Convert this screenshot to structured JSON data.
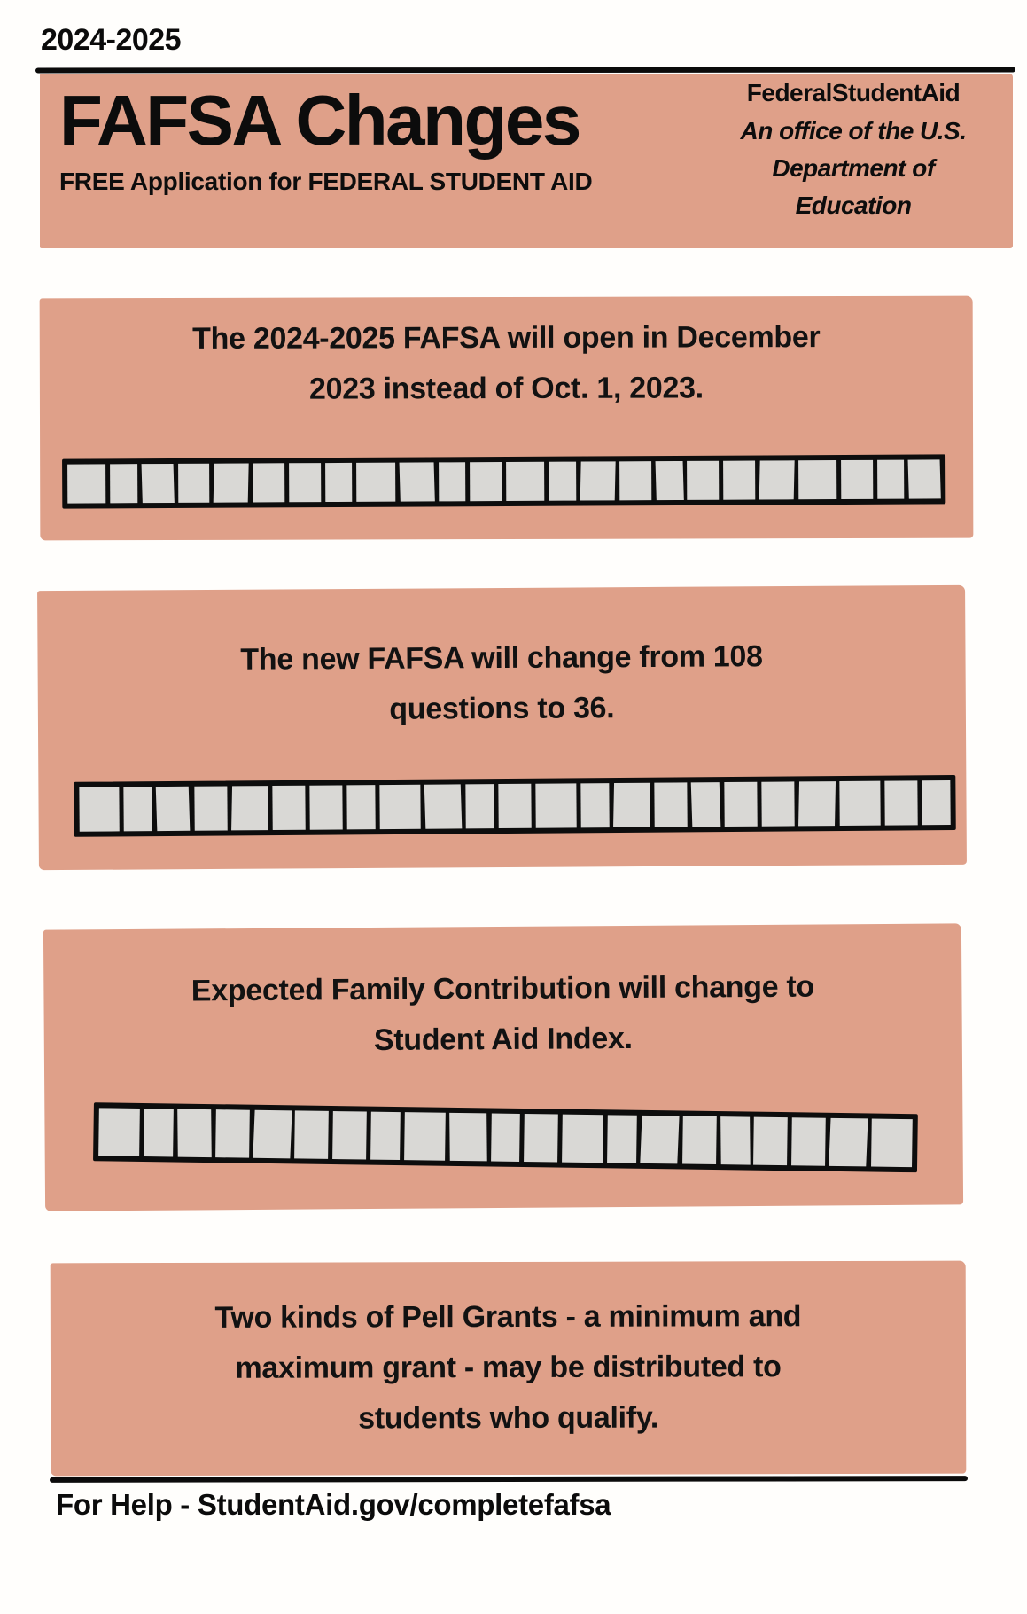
{
  "page": {
    "year_label": "2024-2025",
    "footer_help": "For Help - StudentAid.gov/completefafsa"
  },
  "header": {
    "title": "FAFSA Changes",
    "subtitle": "FREE Application for FEDERAL STUDENT AID",
    "agency_name": "FederalStudentAid",
    "agency_tagline": "An office of the U.S.\nDepartment of\nEducation"
  },
  "colors": {
    "salmon_panel": "#dfa089",
    "bar_cell_fill": "#d9d8d5",
    "ink": "#0d0d0d"
  },
  "cards": [
    {
      "text": "The 2024-2025 FAFSA will open in December\n2023 instead of Oct. 1, 2023.",
      "bar_segments": 24
    },
    {
      "text": "The new FAFSA will change from 108\nquestions to 36.",
      "bar_segments": 23
    },
    {
      "text": "Expected Family Contribution will change to\nStudent Aid Index.",
      "bar_segments": 21
    },
    {
      "text": "Two kinds of Pell Grants - a minimum and\nmaximum grant - may be distributed to\nstudents who qualify.",
      "bar_segments": 0
    }
  ]
}
